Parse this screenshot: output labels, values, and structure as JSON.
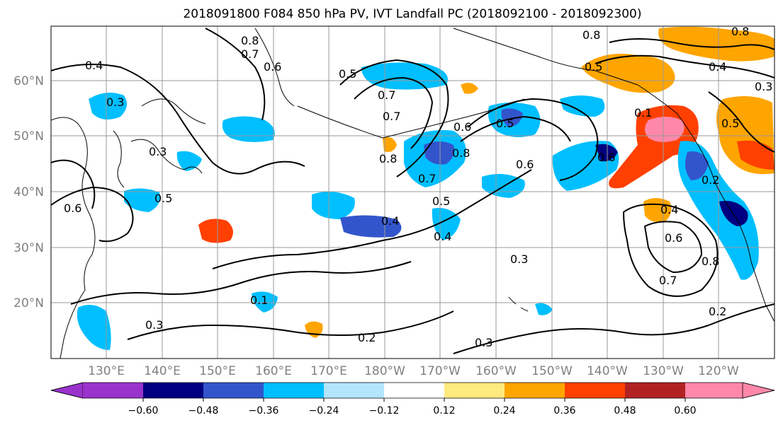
{
  "title": "2018091800 F084 850 hPa PV, IVT Landfall PC (2018092100 - 2018092300)",
  "lat_labels": [
    "60°N",
    "50°N",
    "40°N",
    "30°N",
    "20°N"
  ],
  "lon_labels": [
    "130°E",
    "140°E",
    "150°E",
    "160°E",
    "170°E",
    "180°W",
    "170°W",
    "160°W",
    "150°W",
    "140°W",
    "130°W",
    "120°W"
  ],
  "colorbar": {
    "tick_labels": [
      "−0.60",
      "−0.48",
      "−0.36",
      "−0.24",
      "−0.12",
      "0.12",
      "0.24",
      "0.36",
      "0.48",
      "0.60"
    ],
    "colors": [
      "#9933cc",
      "#000080",
      "#3355cc",
      "#00bfff",
      "#b3e5fc",
      "#ffffff",
      "#ffea80",
      "#ffa500",
      "#ff4000",
      "#b22222",
      "#ff88aa"
    ]
  },
  "contour_labels": [
    "0.8",
    "0.7",
    "0.4",
    "0.3",
    "0.6",
    "0.5",
    "0.8",
    "0.7",
    "0.8",
    "0.7",
    "0.6",
    "0.5",
    "0.4",
    "0.4",
    "0.3",
    "0.3",
    "0.2",
    "0.3",
    "0.2",
    "0.5",
    "0.6",
    "0.8",
    "0.4",
    "0.6",
    "0.7",
    "0.8",
    "0.5",
    "0.2",
    "0.8",
    "0.4",
    "0.6",
    "0.5",
    "0.3",
    "0.1",
    "0.5",
    "0.6",
    "0.3",
    "0.1",
    "0.7"
  ]
}
